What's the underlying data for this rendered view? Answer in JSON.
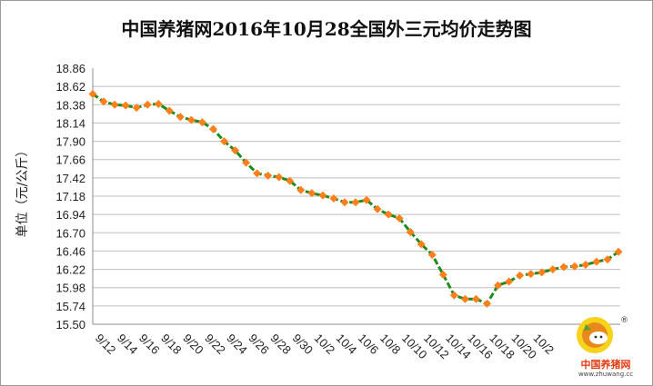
{
  "chart_data": {
    "type": "line",
    "title": "中国养猪网2016年10月28全国外三元均价走势图",
    "ylabel": "单位（元/公斤）",
    "xlabel": "",
    "ylim": [
      15.5,
      18.86
    ],
    "y_ticks": [
      "18.86",
      "18.62",
      "18.38",
      "18.14",
      "17.90",
      "17.66",
      "17.42",
      "17.18",
      "16.94",
      "16.70",
      "16.46",
      "16.22",
      "15.98",
      "15.74",
      "15.50"
    ],
    "x_tick_labels": [
      "9/12",
      "9/14",
      "9/16",
      "9/18",
      "9/20",
      "9/22",
      "9/24",
      "9/26",
      "9/28",
      "9/30",
      "10/2",
      "10/4",
      "10/6",
      "10/8",
      "10/10",
      "10/12",
      "10/14",
      "10/16",
      "10/18",
      "10/20",
      "10/2"
    ],
    "grid": true,
    "series": [
      {
        "color": "#1e8c1e",
        "marker_color": "#ff7f1a",
        "values": [
          18.52,
          18.42,
          18.38,
          18.37,
          18.34,
          18.38,
          18.39,
          18.3,
          18.22,
          18.18,
          18.15,
          18.06,
          17.9,
          17.78,
          17.62,
          17.48,
          17.45,
          17.43,
          17.38,
          17.26,
          17.22,
          17.19,
          17.15,
          17.1,
          17.1,
          17.13,
          17.01,
          16.94,
          16.89,
          16.71,
          16.55,
          16.41,
          16.15,
          15.88,
          15.83,
          15.83,
          15.77,
          16.01,
          16.06,
          16.14,
          16.16,
          16.18,
          16.22,
          16.25,
          16.26,
          16.28,
          16.32,
          16.35,
          16.45
        ]
      }
    ]
  },
  "watermark": {
    "brand": "中国养猪网",
    "url": "www.zhuwang.cc",
    "mark": "®"
  }
}
